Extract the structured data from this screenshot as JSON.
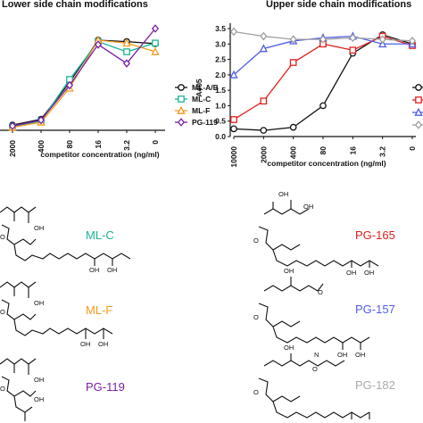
{
  "chart_data": [
    {
      "type": "line",
      "title": "Lower side chain modifications",
      "xlabel": "competitor concentration (ng/ml)",
      "ylabel": "",
      "categories": [
        "2000",
        "400",
        "80",
        "16",
        "3.2",
        "0"
      ],
      "ylim": [
        0,
        3.5
      ],
      "legend_position": "right",
      "series": [
        {
          "name": "ML-A/B",
          "color": "#111111",
          "marker": "circle",
          "values": [
            0.18,
            0.38,
            1.65,
            3.1,
            3.05,
            2.98
          ]
        },
        {
          "name": "ML-C",
          "color": "#19b596",
          "marker": "square",
          "values": [
            0.12,
            0.32,
            1.75,
            3.05,
            2.7,
            3.0
          ]
        },
        {
          "name": "ML-F",
          "color": "#f59a1f",
          "marker": "triangle",
          "values": [
            0.1,
            0.28,
            1.45,
            3.1,
            3.0,
            2.7
          ]
        },
        {
          "name": "PG-119",
          "color": "#7a1fa2",
          "marker": "diamond",
          "values": [
            0.15,
            0.35,
            1.55,
            2.95,
            2.3,
            3.5
          ]
        }
      ]
    },
    {
      "type": "line",
      "title": "Upper side chain modifications",
      "xlabel": "competitor concentration (ng/ml)",
      "ylabel": "A405",
      "categories": [
        "10000",
        "2000",
        "400",
        "80",
        "16",
        "3.2",
        "0"
      ],
      "ylim": [
        0,
        3.5
      ],
      "yticks": [
        "0.0",
        "0.5",
        "1.0",
        "1.5",
        "2.0",
        "2.5",
        "3.0",
        "3.5"
      ],
      "legend_position": "right",
      "series": [
        {
          "name": "",
          "color": "#111111",
          "marker": "circle",
          "values": [
            0.25,
            0.2,
            0.3,
            1.0,
            2.7,
            3.3,
            3.0
          ]
        },
        {
          "name": "",
          "color": "#e0201e",
          "marker": "square",
          "values": [
            0.55,
            1.15,
            2.4,
            3.0,
            2.8,
            3.25,
            2.95
          ]
        },
        {
          "name": "",
          "color": "#4f5de8",
          "marker": "triangle",
          "values": [
            2.0,
            2.85,
            3.1,
            3.2,
            3.25,
            3.0,
            3.0
          ]
        },
        {
          "name": "",
          "color": "#9e9e9e",
          "marker": "diamond",
          "values": [
            3.4,
            3.25,
            3.15,
            3.15,
            3.2,
            3.15,
            3.1
          ]
        }
      ]
    }
  ],
  "compounds": [
    {
      "label": "ML-C",
      "color": "#19b596"
    },
    {
      "label": "ML-F",
      "color": "#f59a1f"
    },
    {
      "label": "PG-119",
      "color": "#7a1fa2"
    },
    {
      "label": "PG-165",
      "color": "#e0201e"
    },
    {
      "label": "PG-157",
      "color": "#4f5de8"
    },
    {
      "label": "PG-182",
      "color": "#a9a9a9"
    }
  ],
  "structure_text": {
    "oh": "OH",
    "o": "O",
    "nh": "N"
  }
}
